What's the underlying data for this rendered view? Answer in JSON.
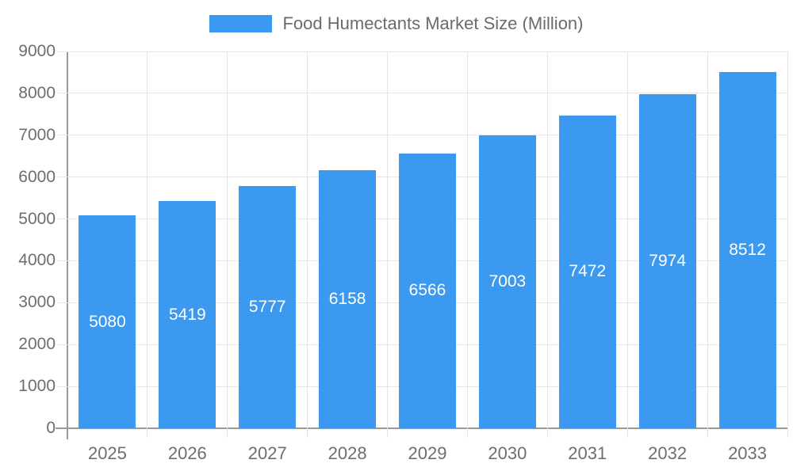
{
  "legend": {
    "label": "Food Humectants Market Size (Million)"
  },
  "chart_data": {
    "type": "bar",
    "title": "Food Humectants Market Size (Million)",
    "categories": [
      "2025",
      "2026",
      "2027",
      "2028",
      "2029",
      "2030",
      "2031",
      "2032",
      "2033"
    ],
    "values": [
      5080,
      5419,
      5777,
      6158,
      6566,
      7003,
      7472,
      7974,
      8512
    ],
    "series_name": "Food Humectants Market Size (Million)",
    "xlabel": "",
    "ylabel": "",
    "ylim": [
      0,
      9000
    ],
    "ytick_step": 1000,
    "yticks": [
      "0",
      "1000",
      "2000",
      "3000",
      "4000",
      "5000",
      "6000",
      "7000",
      "8000",
      "9000"
    ],
    "grid": true,
    "legend_position": "top",
    "value_labels": "inside-center",
    "colors": {
      "bar": "#3B99EF",
      "value_label_text": "#FFFFFF",
      "axis_text": "#6E6E6E",
      "legend_text": "#6B6B6B",
      "gridline": "#E5E5E5",
      "axis_line": "#999999",
      "background": "#FFFFFF"
    }
  }
}
